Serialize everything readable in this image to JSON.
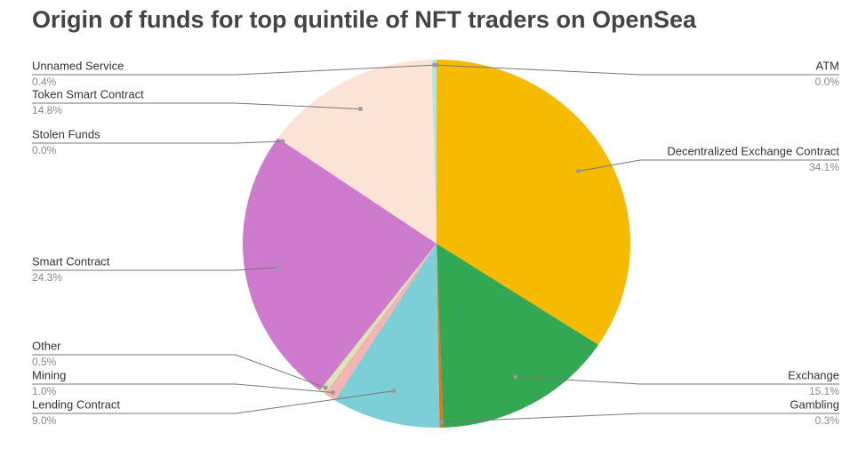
{
  "chart_data": {
    "type": "pie",
    "title": "Origin of funds for top quintile of NFT traders on OpenSea",
    "categories": [
      "ATM",
      "Decentralized Exchange Contract",
      "Exchange",
      "Gambling",
      "Lending Contract",
      "Mining",
      "Other",
      "Smart Contract",
      "Stolen Funds",
      "Token Smart Contract",
      "Unnamed Service"
    ],
    "values": [
      0,
      34.1,
      15.1,
      0.3,
      9.0,
      1.0,
      0.5,
      24.3,
      0,
      14.8,
      0.4
    ],
    "value_labels": [
      "0.0%",
      "34.1%",
      "15.1%",
      "0.3%",
      "9.0%",
      "1.0%",
      "0.5%",
      "24.3%",
      "0.0%",
      "14.8%",
      "0.4%"
    ],
    "colors": [
      "#4a90d9",
      "#f6bb00",
      "#33a852",
      "#e8710a",
      "#7ccfd6",
      "#f4b4b4",
      "#d5e8b0",
      "#cf7bcd",
      "#a0a0a0",
      "#fbe4d6",
      "#b2e5ea"
    ]
  }
}
